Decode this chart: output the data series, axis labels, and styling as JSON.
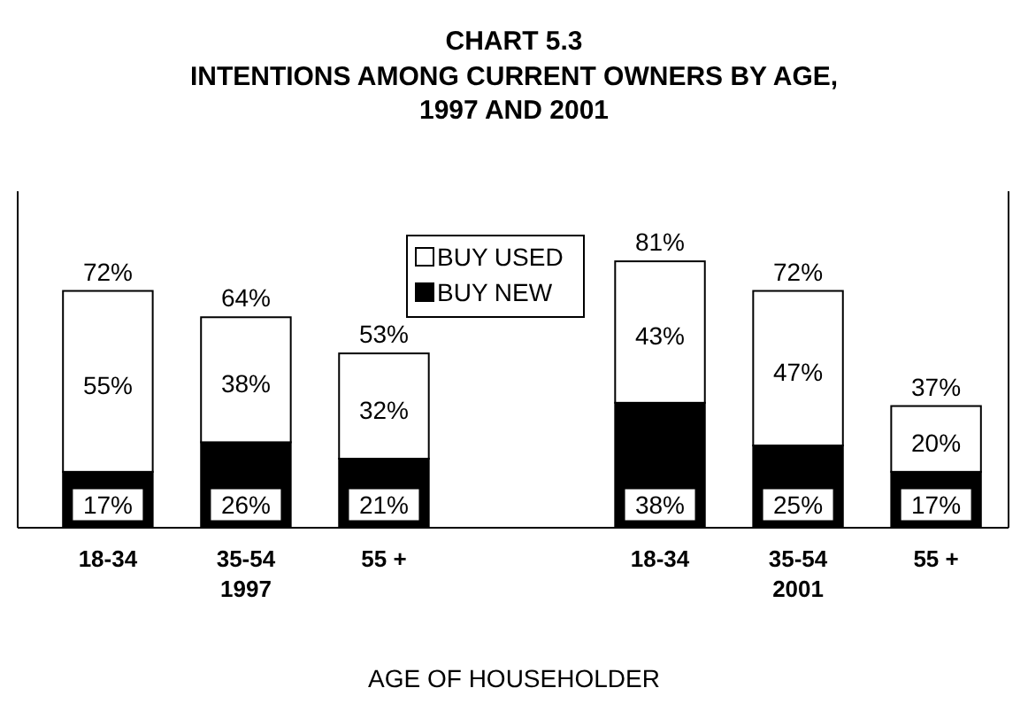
{
  "chart_data": {
    "type": "bar",
    "title": "CHART 5.3",
    "subtitle": "INTENTIONS AMONG CURRENT OWNERS BY AGE,\n1997 AND 2001",
    "xlabel": "AGE OF HOUSEHOLDER",
    "categories": [
      "18-34",
      "35-54\n1997",
      "55 +",
      null,
      "18-34",
      "35-54\n2001",
      "55 +"
    ],
    "stacked": true,
    "legend": "top",
    "series": [
      {
        "name": "BUY NEW",
        "color": "#000000",
        "values": [
          17,
          26,
          21,
          null,
          38,
          25,
          17
        ],
        "value_labels": [
          "17%",
          "26%",
          "21%",
          null,
          "38%",
          "25%",
          "17%"
        ]
      },
      {
        "name": "BUY USED",
        "color": "#ffffff",
        "values": [
          55,
          38,
          32,
          null,
          43,
          47,
          20
        ],
        "value_labels": [
          "55%",
          "38%",
          "32%",
          null,
          "43%",
          "47%",
          "20%"
        ]
      }
    ],
    "totals": [
      "72%",
      "64%",
      "53%",
      null,
      "81%",
      "72%",
      "37%"
    ]
  }
}
